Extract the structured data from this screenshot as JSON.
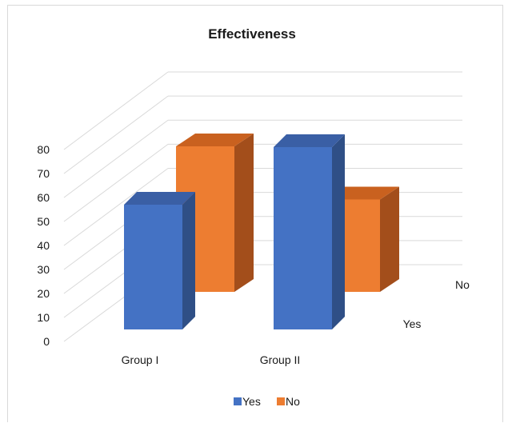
{
  "chart_data": {
    "type": "bar",
    "title": "Effectiveness",
    "categories": [
      "Group I",
      "Group II"
    ],
    "series": [
      {
        "name": "Yes",
        "values": [
          52,
          76
        ],
        "color": "#4472C4",
        "side_color": "#2F4F86",
        "top_color": "#3A5FA5"
      },
      {
        "name": "No",
        "values": [
          63,
          40
        ],
        "color": "#ED7D31",
        "side_color": "#A34E1B",
        "top_color": "#C9611F"
      }
    ],
    "depth_labels": [
      "Yes",
      "No"
    ],
    "yticks": [
      0,
      10,
      20,
      30,
      40,
      50,
      60,
      70,
      80
    ],
    "ylim": [
      0,
      80
    ],
    "grid": true,
    "legend": "bottom",
    "style": "3d-column"
  }
}
